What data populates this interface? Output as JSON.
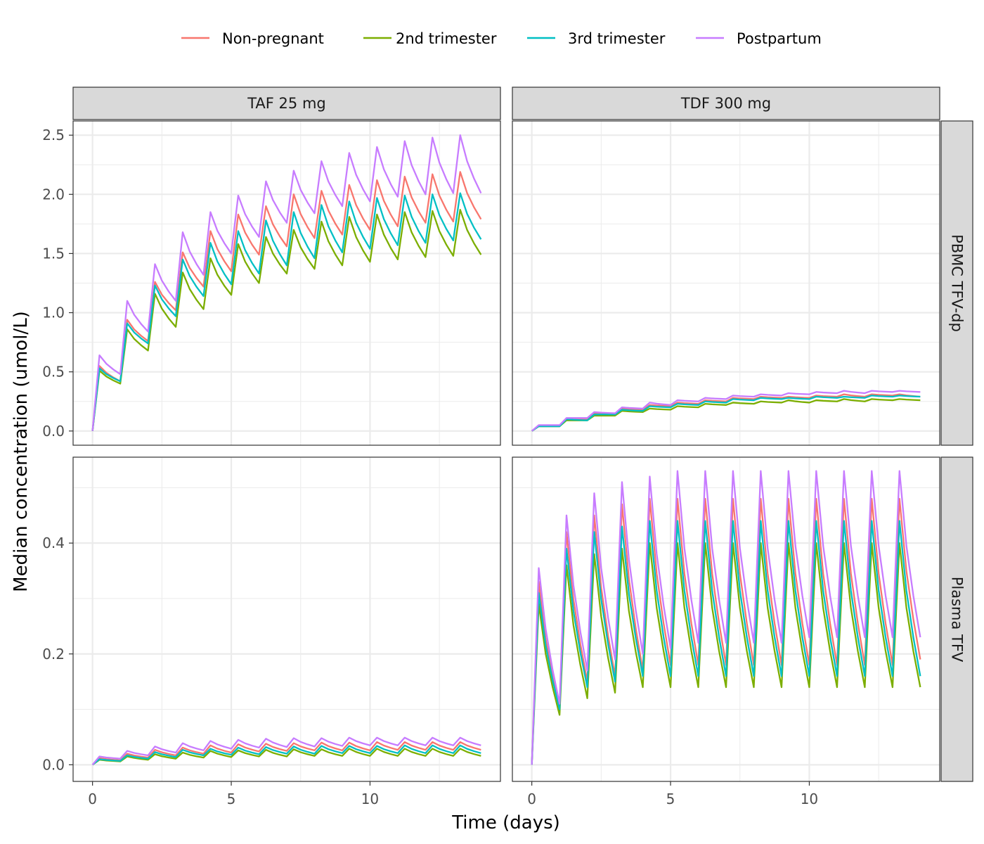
{
  "chart_data": {
    "type": "line",
    "xlabel": "Time (days)",
    "ylabel": "Median concentration (umol/L)",
    "legend_position": "top",
    "grid": true,
    "colors": {
      "Non-pregnant": "#F8766D",
      "2nd trimester": "#7CAE00",
      "3rd trimester": "#00BFC4",
      "Postpartum": "#C77CFF"
    },
    "legend": [
      "Non-pregnant",
      "2nd trimester",
      "3rd trimester",
      "Postpartum"
    ],
    "columns": [
      "TAF 25 mg",
      "TDF 300 mg"
    ],
    "rows": [
      "PBMC TFV-dp",
      "Plasma TFV"
    ],
    "xlim": [
      -0.7,
      14.7
    ],
    "x_ticks": [
      0,
      5,
      10
    ],
    "doses": 14,
    "panels": [
      {
        "column": "TAF 25 mg",
        "row": "PBMC TFV-dp",
        "ylim": [
          -0.12,
          2.62
        ],
        "y_ticks": [
          0.0,
          0.5,
          1.0,
          1.5,
          2.0,
          2.5
        ],
        "y_tick_labels": [
          "0.0",
          "0.5",
          "1.0",
          "1.5",
          "2.0",
          "2.5"
        ],
        "series": [
          {
            "name": "Non-pregnant",
            "peaks": [
              0.55,
              0.94,
              1.26,
              1.51,
              1.69,
              1.83,
              1.9,
              2.0,
              2.03,
              2.08,
              2.12,
              2.15,
              2.17,
              2.19
            ],
            "troughs": [
              0.42,
              0.76,
              1.02,
              1.22,
              1.35,
              1.49,
              1.56,
              1.63,
              1.66,
              1.7,
              1.73,
              1.76,
              1.77,
              1.79
            ]
          },
          {
            "name": "2nd trimester",
            "peaks": [
              0.51,
              0.86,
              1.16,
              1.34,
              1.46,
              1.58,
              1.64,
              1.7,
              1.77,
              1.81,
              1.83,
              1.85,
              1.86,
              1.87
            ],
            "troughs": [
              0.4,
              0.68,
              0.88,
              1.03,
              1.15,
              1.25,
              1.33,
              1.37,
              1.4,
              1.43,
              1.45,
              1.47,
              1.48,
              1.49
            ]
          },
          {
            "name": "3rd trimester",
            "peaks": [
              0.53,
              0.91,
              1.23,
              1.45,
              1.59,
              1.69,
              1.78,
              1.85,
              1.91,
              1.94,
              1.97,
              1.99,
              2.0,
              2.01
            ],
            "troughs": [
              0.42,
              0.74,
              0.97,
              1.14,
              1.24,
              1.33,
              1.4,
              1.46,
              1.51,
              1.54,
              1.57,
              1.59,
              1.61,
              1.62
            ]
          },
          {
            "name": "Postpartum",
            "peaks": [
              0.64,
              1.1,
              1.41,
              1.68,
              1.85,
              1.99,
              2.11,
              2.2,
              2.28,
              2.35,
              2.4,
              2.45,
              2.48,
              2.5
            ],
            "troughs": [
              0.48,
              0.84,
              1.1,
              1.32,
              1.5,
              1.64,
              1.76,
              1.84,
              1.9,
              1.94,
              1.98,
              2.0,
              2.01,
              2.01
            ]
          }
        ]
      },
      {
        "column": "TDF 300 mg",
        "row": "PBMC TFV-dp",
        "ylim": [
          -0.12,
          2.62
        ],
        "y_ticks": [
          0.0,
          0.5,
          1.0,
          1.5,
          2.0,
          2.5
        ],
        "y_tick_labels": [
          "0.0",
          "0.5",
          "1.0",
          "1.5",
          "2.0",
          "2.5"
        ],
        "series": [
          {
            "name": "Non-pregnant",
            "peaks": [
              0.04,
              0.1,
              0.15,
              0.19,
              0.22,
              0.24,
              0.26,
              0.28,
              0.29,
              0.29,
              0.3,
              0.31,
              0.31,
              0.31
            ],
            "troughs": [
              0.04,
              0.1,
              0.14,
              0.18,
              0.21,
              0.23,
              0.25,
              0.27,
              0.28,
              0.28,
              0.29,
              0.29,
              0.3,
              0.29
            ]
          },
          {
            "name": "2nd trimester",
            "peaks": [
              0.04,
              0.09,
              0.13,
              0.17,
              0.19,
              0.21,
              0.23,
              0.24,
              0.25,
              0.26,
              0.26,
              0.27,
              0.27,
              0.27
            ],
            "troughs": [
              0.04,
              0.09,
              0.13,
              0.16,
              0.18,
              0.2,
              0.22,
              0.23,
              0.24,
              0.24,
              0.25,
              0.25,
              0.26,
              0.26
            ]
          },
          {
            "name": "3rd trimester",
            "peaks": [
              0.04,
              0.1,
              0.14,
              0.18,
              0.21,
              0.23,
              0.25,
              0.27,
              0.28,
              0.28,
              0.29,
              0.29,
              0.3,
              0.3
            ],
            "troughs": [
              0.04,
              0.09,
              0.14,
              0.17,
              0.2,
              0.22,
              0.24,
              0.26,
              0.27,
              0.27,
              0.28,
              0.28,
              0.29,
              0.29
            ]
          },
          {
            "name": "Postpartum",
            "peaks": [
              0.05,
              0.11,
              0.16,
              0.2,
              0.24,
              0.26,
              0.28,
              0.3,
              0.31,
              0.32,
              0.33,
              0.34,
              0.34,
              0.34
            ],
            "troughs": [
              0.05,
              0.11,
              0.15,
              0.19,
              0.22,
              0.25,
              0.27,
              0.29,
              0.3,
              0.31,
              0.32,
              0.32,
              0.33,
              0.33
            ]
          }
        ]
      },
      {
        "column": "TAF 25 mg",
        "row": "Plasma TFV",
        "ylim": [
          -0.03,
          0.555
        ],
        "y_ticks": [
          0.0,
          0.2,
          0.4
        ],
        "y_tick_labels": [
          "0.0",
          "0.2",
          "0.4"
        ],
        "series": [
          {
            "name": "Non-pregnant",
            "peaks": [
              0.012,
              0.02,
              0.027,
              0.031,
              0.035,
              0.037,
              0.038,
              0.039,
              0.04,
              0.04,
              0.041,
              0.041,
              0.041,
              0.041
            ],
            "troughs": [
              0.008,
              0.013,
              0.017,
              0.02,
              0.022,
              0.024,
              0.025,
              0.026,
              0.026,
              0.026,
              0.027,
              0.027,
              0.027,
              0.027
            ]
          },
          {
            "name": "2nd trimester",
            "peaks": [
              0.009,
              0.015,
              0.019,
              0.022,
              0.025,
              0.026,
              0.027,
              0.028,
              0.028,
              0.029,
              0.029,
              0.029,
              0.029,
              0.029
            ],
            "troughs": [
              0.006,
              0.009,
              0.011,
              0.013,
              0.014,
              0.015,
              0.015,
              0.016,
              0.016,
              0.016,
              0.016,
              0.016,
              0.016,
              0.016
            ]
          },
          {
            "name": "3rd trimester",
            "peaks": [
              0.01,
              0.017,
              0.023,
              0.027,
              0.029,
              0.031,
              0.032,
              0.033,
              0.034,
              0.034,
              0.034,
              0.035,
              0.035,
              0.035
            ],
            "troughs": [
              0.007,
              0.011,
              0.014,
              0.017,
              0.018,
              0.019,
              0.02,
              0.02,
              0.021,
              0.021,
              0.021,
              0.021,
              0.021,
              0.021
            ]
          },
          {
            "name": "Postpartum",
            "peaks": [
              0.015,
              0.025,
              0.033,
              0.039,
              0.043,
              0.045,
              0.047,
              0.048,
              0.048,
              0.049,
              0.049,
              0.049,
              0.049,
              0.049
            ],
            "troughs": [
              0.011,
              0.017,
              0.022,
              0.026,
              0.029,
              0.031,
              0.032,
              0.033,
              0.034,
              0.035,
              0.035,
              0.035,
              0.035,
              0.035
            ]
          }
        ]
      },
      {
        "column": "TDF 300 mg",
        "row": "Plasma TFV",
        "ylim": [
          -0.03,
          0.555
        ],
        "y_ticks": [
          0.0,
          0.2,
          0.4
        ],
        "y_tick_labels": [
          "0.0",
          "0.2",
          "0.4"
        ],
        "series": [
          {
            "name": "Non-pregnant",
            "peaks": [
              0.33,
              0.42,
              0.45,
              0.47,
              0.48,
              0.48,
              0.48,
              0.48,
              0.48,
              0.48,
              0.48,
              0.48,
              0.48,
              0.48
            ],
            "troughs": [
              0.1,
              0.15,
              0.16,
              0.17,
              0.18,
              0.18,
              0.18,
              0.18,
              0.18,
              0.18,
              0.18,
              0.18,
              0.18,
              0.19
            ]
          },
          {
            "name": "2nd trimester",
            "peaks": [
              0.29,
              0.36,
              0.38,
              0.39,
              0.4,
              0.4,
              0.4,
              0.4,
              0.4,
              0.4,
              0.4,
              0.4,
              0.4,
              0.4
            ],
            "troughs": [
              0.09,
              0.12,
              0.13,
              0.14,
              0.14,
              0.14,
              0.14,
              0.14,
              0.14,
              0.14,
              0.14,
              0.14,
              0.14,
              0.14
            ]
          },
          {
            "name": "3rd trimester",
            "peaks": [
              0.31,
              0.39,
              0.42,
              0.43,
              0.44,
              0.44,
              0.44,
              0.44,
              0.44,
              0.44,
              0.44,
              0.44,
              0.44,
              0.44
            ],
            "troughs": [
              0.1,
              0.14,
              0.15,
              0.16,
              0.16,
              0.16,
              0.16,
              0.16,
              0.16,
              0.16,
              0.16,
              0.16,
              0.16,
              0.16
            ]
          },
          {
            "name": "Postpartum",
            "peaks": [
              0.355,
              0.45,
              0.49,
              0.51,
              0.52,
              0.53,
              0.53,
              0.53,
              0.53,
              0.53,
              0.53,
              0.53,
              0.53,
              0.53
            ],
            "troughs": [
              0.11,
              0.17,
              0.19,
              0.2,
              0.21,
              0.22,
              0.22,
              0.22,
              0.22,
              0.23,
              0.23,
              0.23,
              0.23,
              0.23
            ]
          }
        ]
      }
    ]
  }
}
